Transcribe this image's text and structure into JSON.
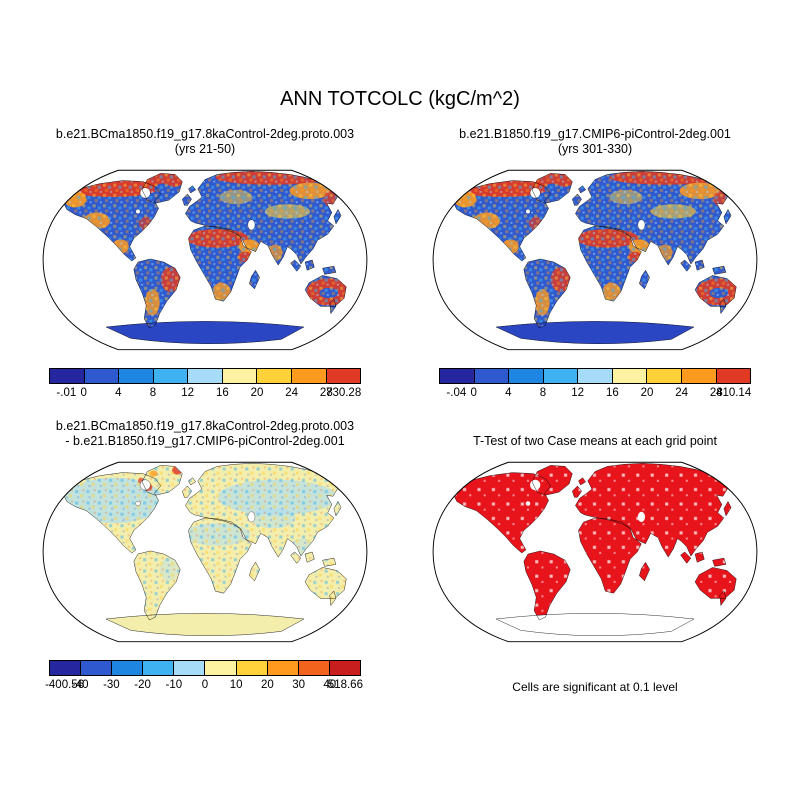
{
  "title": "ANN TOTCOLC (kgC/m^2)",
  "panels": [
    {
      "id": "case1",
      "style": "mean",
      "title_lines": [
        "b.e21.BCma1850.f19_g17.8kaControl-2deg.proto.003",
        "(yrs 21-50)"
      ],
      "colorbar": {
        "colors": [
          "#26269e",
          "#2e59cf",
          "#1e86e0",
          "#3fb3f2",
          "#a7dcf8",
          "#fdf2a2",
          "#ffd23c",
          "#ff9a1e",
          "#e03a24"
        ],
        "labels": [
          "-.01",
          "0",
          "4",
          "8",
          "12",
          "16",
          "20",
          "24",
          "28",
          "730.28"
        ]
      }
    },
    {
      "id": "case2",
      "style": "mean",
      "title_lines": [
        "b.e21.B1850.f19_g17.CMIP6-piControl-2deg.001",
        "(yrs 301-330)"
      ],
      "colorbar": {
        "colors": [
          "#26269e",
          "#2e59cf",
          "#1e86e0",
          "#3fb3f2",
          "#a7dcf8",
          "#fdf2a2",
          "#ffd23c",
          "#ff9a1e",
          "#e03a24"
        ],
        "labels": [
          "-.04",
          "0",
          "4",
          "8",
          "12",
          "16",
          "20",
          "24",
          "28",
          "410.14"
        ]
      }
    },
    {
      "id": "difference",
      "style": "diff",
      "title_lines": [
        "b.e21.BCma1850.f19_g17.8kaControl-2deg.proto.003",
        "- b.e21.B1850.f19_g17.CMIP6-piControl-2deg.001"
      ],
      "colorbar": {
        "colors": [
          "#26269e",
          "#2e59cf",
          "#1e86e0",
          "#3fb3f2",
          "#a7dcf8",
          "#fdf2a2",
          "#ffd23c",
          "#ff9a1e",
          "#f2641e",
          "#c81e1e"
        ],
        "labels": [
          "-400.56",
          "-40",
          "-30",
          "-20",
          "-10",
          "0",
          "10",
          "20",
          "30",
          "40",
          "518.66"
        ]
      }
    },
    {
      "id": "ttest",
      "style": "ttest",
      "title_lines": [
        "T-Test of two Case means at each grid point"
      ],
      "caption": "Cells are significant at 0.1 level"
    }
  ],
  "map_colors": {
    "ocean": "#ffffff",
    "outline": "#000000",
    "mean_land": "#2e59cf",
    "mean_polar": "#2a46c2",
    "warm_red": "#e03a24",
    "warm_orange": "#ff9a1e",
    "warm_yellow": "#ffd23c",
    "diff_land": "#f4eeac",
    "diff_blue": "#a7dcf8",
    "sig_red": "#e8141c"
  },
  "chart_data": [
    {
      "type": "heatmap",
      "subtype": "global-map",
      "title": "b.e21.BCma1850.f19_g17.8kaControl-2deg.proto.003 (yrs 21-50)",
      "variable": "ANN TOTCOLC",
      "units": "kgC/m^2",
      "projection": "robinson",
      "contour_levels": [
        0,
        4,
        8,
        12,
        16,
        20,
        24,
        28
      ],
      "min": -0.01,
      "max": 730.28
    },
    {
      "type": "heatmap",
      "subtype": "global-map",
      "title": "b.e21.B1850.f19_g17.CMIP6-piControl-2deg.001 (yrs 301-330)",
      "variable": "ANN TOTCOLC",
      "units": "kgC/m^2",
      "projection": "robinson",
      "contour_levels": [
        0,
        4,
        8,
        12,
        16,
        20,
        24,
        28
      ],
      "min": -0.04,
      "max": 410.14
    },
    {
      "type": "heatmap",
      "subtype": "global-map-difference",
      "title": "b.e21.BCma1850.f19_g17.8kaControl-2deg.proto.003 - b.e21.B1850.f19_g17.CMIP6-piControl-2deg.001",
      "variable": "ANN TOTCOLC difference",
      "units": "kgC/m^2",
      "projection": "robinson",
      "contour_levels": [
        -40,
        -30,
        -20,
        -10,
        0,
        10,
        20,
        30,
        40
      ],
      "min": -400.56,
      "max": 518.66
    },
    {
      "type": "heatmap",
      "subtype": "significance-mask",
      "title": "T-Test of two Case means at each grid point",
      "note": "Cells are significant at 0.1 level",
      "projection": "robinson"
    }
  ]
}
